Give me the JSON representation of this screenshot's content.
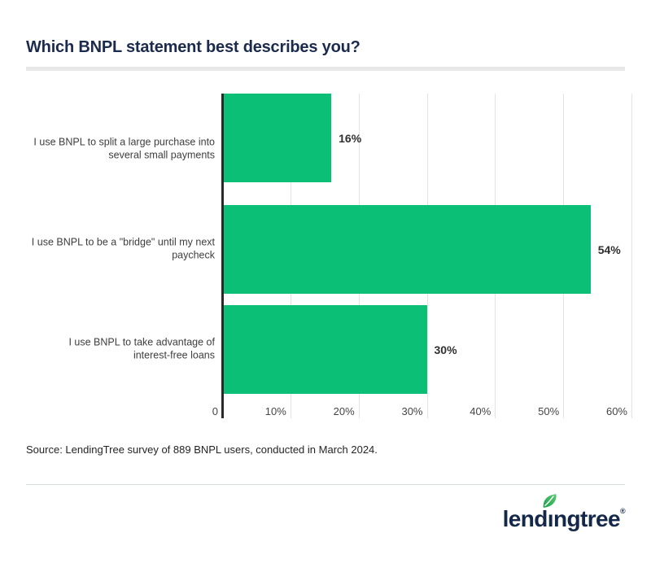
{
  "title": "Which BNPL statement best describes you?",
  "chart_data": {
    "type": "bar",
    "orientation": "horizontal",
    "title": "Which BNPL statement best describes you?",
    "categories": [
      "I use BNPL to split a large purchase into\nseveral small payments",
      "I use BNPL to be a \"bridge\" until my next\npaycheck",
      "I use BNPL to take advantage of\ninterest-free loans"
    ],
    "values": [
      54,
      30,
      16
    ],
    "value_labels": [
      "54%",
      "30%",
      "16%"
    ],
    "x_ticks": [
      "0",
      "10%",
      "20%",
      "30%",
      "40%",
      "50%",
      "60%"
    ],
    "xlim": [
      0,
      60
    ],
    "xlabel": "",
    "ylabel": "",
    "grid": true,
    "legend": false,
    "bar_color": "#0cbf76"
  },
  "source_note": "Source: LendingTree survey of 889 BNPL users, conducted in March 2024.",
  "footer": {
    "logo": {
      "part1": "lend",
      "dotless_i": "ı",
      "part2": "ngtree",
      "registered_mark": "®"
    }
  },
  "colors": {
    "accent_green": "#0cbf76",
    "brand_navy": "#1b2b4d",
    "leaf_green_dark": "#1d9e4f",
    "leaf_green_light": "#5bcb6f",
    "gridline": "#e3e3e3",
    "axis": "#2a2a2a"
  }
}
